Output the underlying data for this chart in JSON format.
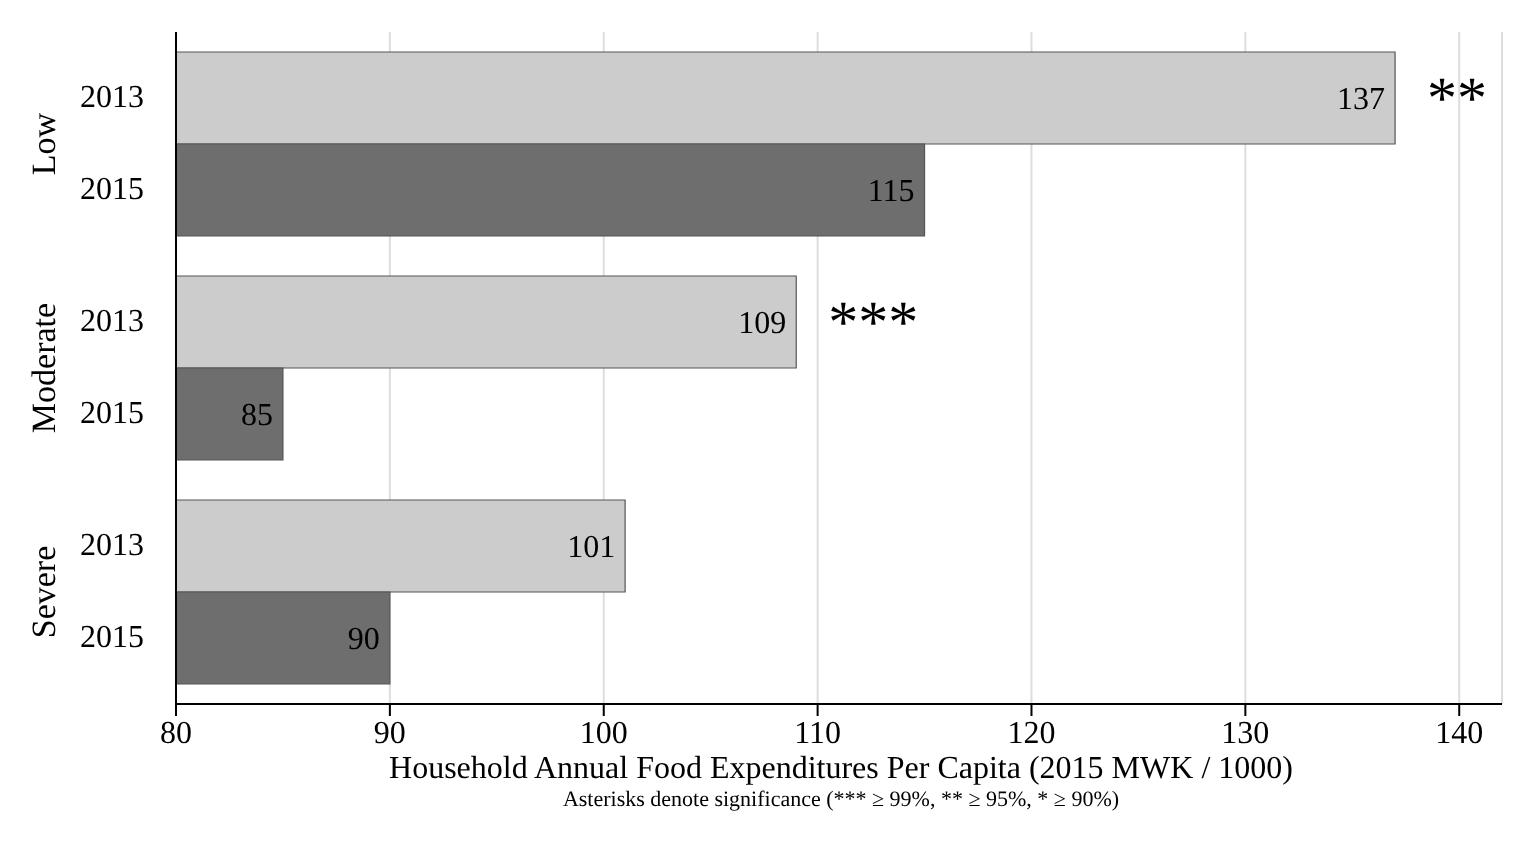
{
  "chart_data": {
    "type": "bar",
    "orientation": "horizontal",
    "categories": [
      "Low",
      "Moderate",
      "Severe"
    ],
    "series": [
      {
        "name": "2013",
        "color": "#cccccc",
        "values": [
          137,
          109,
          101
        ]
      },
      {
        "name": "2015",
        "color": "#6e6e6e",
        "values": [
          115,
          85,
          90
        ]
      }
    ],
    "xlim": [
      80,
      142
    ],
    "xticks": [
      80,
      90,
      100,
      110,
      120,
      130,
      140
    ],
    "grid": "x",
    "legend": false,
    "data_labels": true,
    "xlabel": "Household Annual Food Expenditures Per Capita (2015 MWK / 1000)",
    "annotations": [
      {
        "text": "**",
        "x": 137,
        "y": "Low"
      },
      {
        "text": "***",
        "x": 109,
        "y": "Moderate"
      },
      "Asterisks denote significance (*** ≥ 99%, ** ≥ 95%, * ≥ 90%)"
    ]
  }
}
